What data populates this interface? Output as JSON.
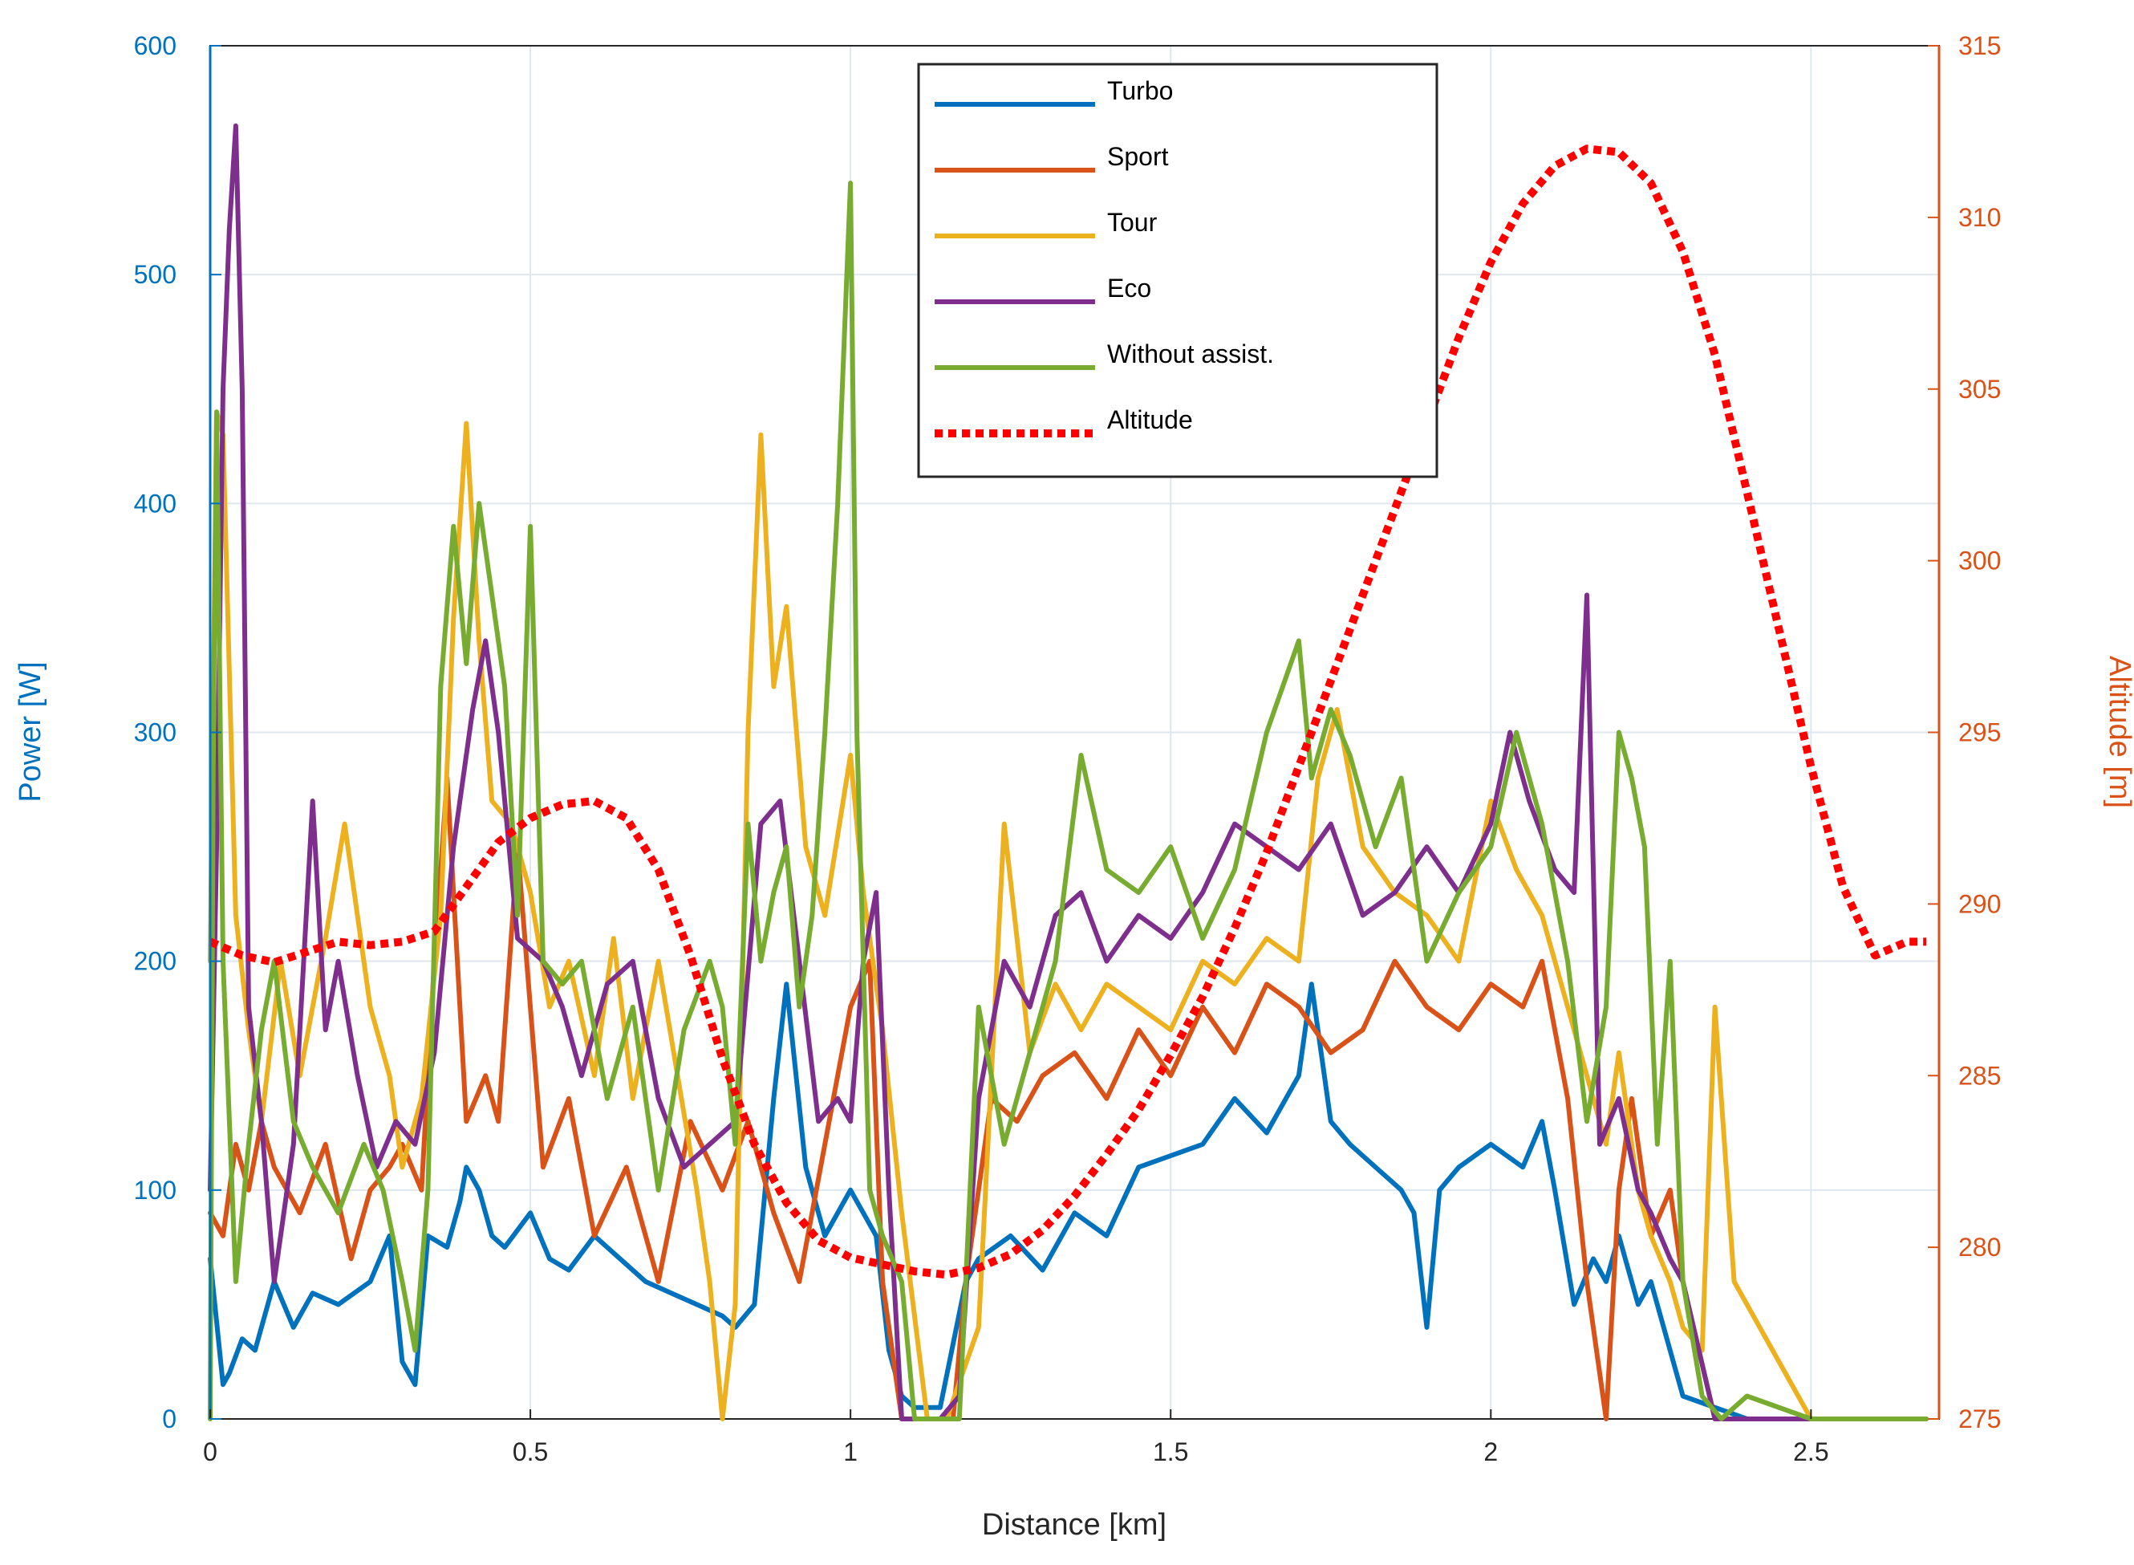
{
  "chart_data": {
    "type": "line",
    "title": "",
    "xlabel": "Distance [km]",
    "ylabel_left": "Power [W]",
    "ylabel_right": "Altitude [m]",
    "xlim": [
      0,
      2.7
    ],
    "ylim_left": [
      0,
      600
    ],
    "ylim_right": [
      275,
      315
    ],
    "x_ticks": [
      "0",
      "0.5",
      "1",
      "1.5",
      "2",
      "2.5"
    ],
    "y_left_ticks": [
      "0",
      "100",
      "200",
      "300",
      "400",
      "500",
      "600"
    ],
    "y_right_ticks": [
      "275",
      "280",
      "285",
      "290",
      "295",
      "300",
      "305",
      "310",
      "315"
    ],
    "grid": true,
    "legend_position": "top-center",
    "colors": {
      "left_axis": "#0072BD",
      "right_axis": "#D95319",
      "grid": "#dfe6ee"
    },
    "series": [
      {
        "name": "Turbo",
        "axis": "left",
        "color": "#0072BD",
        "style": "solid",
        "x": [
          0,
          0.02,
          0.03,
          0.05,
          0.07,
          0.1,
          0.13,
          0.16,
          0.2,
          0.25,
          0.28,
          0.3,
          0.32,
          0.34,
          0.37,
          0.39,
          0.4,
          0.42,
          0.44,
          0.46,
          0.5,
          0.53,
          0.56,
          0.6,
          0.64,
          0.68,
          0.72,
          0.76,
          0.8,
          0.82,
          0.85,
          0.88,
          0.9,
          0.93,
          0.96,
          1.0,
          1.02,
          1.04,
          1.06,
          1.08,
          1.1,
          1.14,
          1.18,
          1.2,
          1.25,
          1.3,
          1.35,
          1.4,
          1.45,
          1.5,
          1.55,
          1.6,
          1.65,
          1.7,
          1.72,
          1.75,
          1.78,
          1.82,
          1.86,
          1.88,
          1.9,
          1.92,
          1.95,
          2.0,
          2.05,
          2.08,
          2.1,
          2.13,
          2.16,
          2.18,
          2.2,
          2.23,
          2.25,
          2.3,
          2.4,
          2.5,
          2.6,
          2.68
        ],
        "values": [
          70,
          15,
          20,
          35,
          30,
          60,
          40,
          55,
          50,
          60,
          80,
          25,
          15,
          80,
          75,
          95,
          110,
          100,
          80,
          75,
          90,
          70,
          65,
          80,
          70,
          60,
          55,
          50,
          45,
          40,
          50,
          140,
          190,
          110,
          80,
          100,
          90,
          80,
          30,
          10,
          5,
          5,
          60,
          70,
          80,
          65,
          90,
          80,
          110,
          115,
          120,
          140,
          125,
          150,
          190,
          130,
          120,
          110,
          100,
          90,
          40,
          100,
          110,
          120,
          110,
          130,
          100,
          50,
          70,
          60,
          80,
          50,
          60,
          10,
          0,
          0,
          0,
          0
        ]
      },
      {
        "name": "Sport",
        "axis": "left",
        "color": "#D95319",
        "style": "solid",
        "x": [
          0,
          0.02,
          0.04,
          0.06,
          0.08,
          0.1,
          0.14,
          0.18,
          0.22,
          0.25,
          0.28,
          0.3,
          0.33,
          0.35,
          0.37,
          0.4,
          0.43,
          0.45,
          0.48,
          0.52,
          0.56,
          0.6,
          0.65,
          0.7,
          0.75,
          0.8,
          0.84,
          0.88,
          0.92,
          0.96,
          1.0,
          1.03,
          1.05,
          1.08,
          1.12,
          1.16,
          1.18,
          1.22,
          1.26,
          1.3,
          1.35,
          1.4,
          1.45,
          1.5,
          1.55,
          1.6,
          1.65,
          1.7,
          1.75,
          1.8,
          1.85,
          1.9,
          1.95,
          2.0,
          2.05,
          2.08,
          2.1,
          2.12,
          2.15,
          2.18,
          2.2,
          2.22,
          2.25,
          2.28,
          2.3,
          2.35,
          2.4,
          2.5,
          2.68
        ],
        "values": [
          90,
          80,
          120,
          100,
          130,
          110,
          90,
          120,
          70,
          100,
          110,
          120,
          100,
          200,
          280,
          130,
          150,
          130,
          250,
          110,
          140,
          80,
          110,
          60,
          130,
          100,
          130,
          90,
          60,
          120,
          180,
          200,
          60,
          0,
          0,
          0,
          60,
          140,
          130,
          150,
          160,
          140,
          170,
          150,
          180,
          160,
          190,
          180,
          160,
          170,
          200,
          180,
          170,
          190,
          180,
          200,
          170,
          140,
          60,
          0,
          100,
          140,
          80,
          100,
          60,
          0,
          0,
          0,
          0
        ]
      },
      {
        "name": "Tour",
        "axis": "left",
        "color": "#EDB120",
        "style": "solid",
        "x": [
          0,
          0.01,
          0.02,
          0.04,
          0.06,
          0.08,
          0.11,
          0.14,
          0.18,
          0.21,
          0.25,
          0.28,
          0.3,
          0.33,
          0.36,
          0.38,
          0.4,
          0.42,
          0.44,
          0.47,
          0.5,
          0.53,
          0.56,
          0.6,
          0.63,
          0.66,
          0.7,
          0.73,
          0.76,
          0.78,
          0.8,
          0.82,
          0.84,
          0.86,
          0.88,
          0.9,
          0.93,
          0.96,
          1.0,
          1.02,
          1.05,
          1.08,
          1.12,
          1.15,
          1.2,
          1.24,
          1.28,
          1.32,
          1.36,
          1.4,
          1.45,
          1.5,
          1.55,
          1.6,
          1.65,
          1.7,
          1.73,
          1.76,
          1.8,
          1.85,
          1.9,
          1.95,
          2.0,
          2.04,
          2.08,
          2.12,
          2.15,
          2.18,
          2.2,
          2.23,
          2.25,
          2.28,
          2.3,
          2.33,
          2.35,
          2.38,
          2.5,
          2.68
        ],
        "values": [
          200,
          440,
          430,
          220,
          170,
          130,
          200,
          150,
          210,
          260,
          180,
          150,
          110,
          140,
          220,
          350,
          435,
          340,
          270,
          260,
          230,
          180,
          200,
          150,
          210,
          140,
          200,
          150,
          100,
          60,
          0,
          50,
          300,
          430,
          320,
          355,
          250,
          220,
          290,
          230,
          170,
          90,
          0,
          0,
          40,
          260,
          160,
          190,
          170,
          190,
          180,
          170,
          200,
          190,
          210,
          200,
          280,
          310,
          250,
          230,
          220,
          200,
          270,
          240,
          220,
          180,
          150,
          120,
          160,
          100,
          80,
          60,
          40,
          30,
          180,
          60,
          0,
          0
        ]
      },
      {
        "name": "Eco",
        "axis": "left",
        "color": "#7E2F8E",
        "style": "solid",
        "x": [
          0,
          0.01,
          0.02,
          0.03,
          0.04,
          0.05,
          0.06,
          0.08,
          0.1,
          0.13,
          0.16,
          0.18,
          0.2,
          0.23,
          0.26,
          0.29,
          0.32,
          0.35,
          0.38,
          0.41,
          0.43,
          0.45,
          0.48,
          0.52,
          0.55,
          0.58,
          0.62,
          0.66,
          0.7,
          0.74,
          0.78,
          0.82,
          0.86,
          0.89,
          0.92,
          0.95,
          0.98,
          1.0,
          1.02,
          1.04,
          1.06,
          1.08,
          1.1,
          1.14,
          1.17,
          1.2,
          1.24,
          1.28,
          1.32,
          1.36,
          1.4,
          1.45,
          1.5,
          1.55,
          1.6,
          1.65,
          1.7,
          1.75,
          1.8,
          1.85,
          1.9,
          1.95,
          2.0,
          2.03,
          2.06,
          2.1,
          2.13,
          2.15,
          2.17,
          2.2,
          2.23,
          2.25,
          2.28,
          2.3,
          2.35,
          2.4,
          2.5,
          2.68
        ],
        "values": [
          100,
          250,
          450,
          520,
          565,
          450,
          180,
          130,
          60,
          120,
          270,
          170,
          200,
          150,
          110,
          130,
          120,
          160,
          250,
          310,
          340,
          300,
          210,
          200,
          180,
          150,
          190,
          200,
          140,
          110,
          120,
          130,
          260,
          270,
          200,
          130,
          140,
          130,
          200,
          230,
          100,
          0,
          0,
          0,
          10,
          140,
          200,
          180,
          220,
          230,
          200,
          220,
          210,
          230,
          260,
          250,
          240,
          260,
          220,
          230,
          250,
          230,
          260,
          300,
          270,
          240,
          230,
          360,
          120,
          140,
          100,
          90,
          70,
          60,
          0,
          0,
          0,
          0
        ]
      },
      {
        "name": "Without assist.",
        "axis": "left",
        "color": "#77AC30",
        "style": "solid",
        "x": [
          0,
          0.005,
          0.01,
          0.02,
          0.04,
          0.06,
          0.08,
          0.1,
          0.13,
          0.16,
          0.2,
          0.24,
          0.27,
          0.3,
          0.32,
          0.34,
          0.36,
          0.38,
          0.4,
          0.42,
          0.44,
          0.46,
          0.48,
          0.5,
          0.52,
          0.55,
          0.58,
          0.62,
          0.66,
          0.7,
          0.74,
          0.78,
          0.8,
          0.82,
          0.84,
          0.86,
          0.88,
          0.9,
          0.92,
          0.94,
          0.96,
          0.98,
          1.0,
          1.01,
          1.03,
          1.05,
          1.08,
          1.1,
          1.14,
          1.17,
          1.2,
          1.24,
          1.28,
          1.32,
          1.36,
          1.4,
          1.45,
          1.5,
          1.55,
          1.6,
          1.65,
          1.7,
          1.72,
          1.75,
          1.78,
          1.82,
          1.86,
          1.9,
          1.95,
          2.0,
          2.04,
          2.08,
          2.12,
          2.15,
          2.18,
          2.2,
          2.22,
          2.24,
          2.26,
          2.28,
          2.3,
          2.33,
          2.36,
          2.4,
          2.5,
          2.68
        ],
        "values": [
          0,
          300,
          440,
          200,
          60,
          120,
          170,
          200,
          130,
          110,
          90,
          120,
          100,
          60,
          30,
          100,
          320,
          390,
          330,
          400,
          360,
          320,
          220,
          390,
          200,
          190,
          200,
          140,
          180,
          100,
          170,
          200,
          180,
          120,
          260,
          200,
          230,
          250,
          180,
          220,
          300,
          400,
          540,
          300,
          100,
          80,
          60,
          0,
          0,
          0,
          180,
          120,
          160,
          200,
          290,
          240,
          230,
          250,
          210,
          240,
          300,
          340,
          280,
          310,
          290,
          250,
          280,
          200,
          230,
          250,
          300,
          260,
          200,
          130,
          180,
          300,
          280,
          250,
          120,
          200,
          60,
          10,
          0,
          10,
          0,
          0
        ]
      },
      {
        "name": "Altitude",
        "axis": "right",
        "color": "#FF0000",
        "style": "dotted",
        "x": [
          0,
          0.05,
          0.1,
          0.15,
          0.2,
          0.25,
          0.3,
          0.35,
          0.4,
          0.45,
          0.5,
          0.55,
          0.6,
          0.65,
          0.7,
          0.75,
          0.8,
          0.85,
          0.9,
          0.95,
          1.0,
          1.05,
          1.1,
          1.15,
          1.2,
          1.25,
          1.3,
          1.35,
          1.4,
          1.45,
          1.5,
          1.55,
          1.6,
          1.65,
          1.7,
          1.75,
          1.8,
          1.85,
          1.9,
          1.95,
          2.0,
          2.05,
          2.1,
          2.15,
          2.2,
          2.25,
          2.3,
          2.35,
          2.4,
          2.45,
          2.5,
          2.55,
          2.6,
          2.65,
          2.68
        ],
        "values": [
          288.9,
          288.5,
          288.3,
          288.6,
          288.9,
          288.8,
          288.9,
          289.2,
          290.5,
          291.8,
          292.5,
          292.9,
          293.0,
          292.5,
          291.0,
          288.5,
          285.5,
          283.0,
          281.3,
          280.2,
          279.7,
          279.5,
          279.3,
          279.2,
          279.4,
          279.8,
          280.5,
          281.5,
          282.7,
          284.0,
          285.6,
          287.3,
          289.3,
          291.5,
          294.0,
          296.5,
          299.0,
          301.5,
          304.0,
          306.5,
          308.7,
          310.4,
          311.5,
          312.0,
          311.9,
          311.0,
          309.0,
          306.0,
          302.0,
          298.0,
          294.0,
          290.5,
          288.5,
          288.9,
          288.9
        ]
      }
    ]
  }
}
